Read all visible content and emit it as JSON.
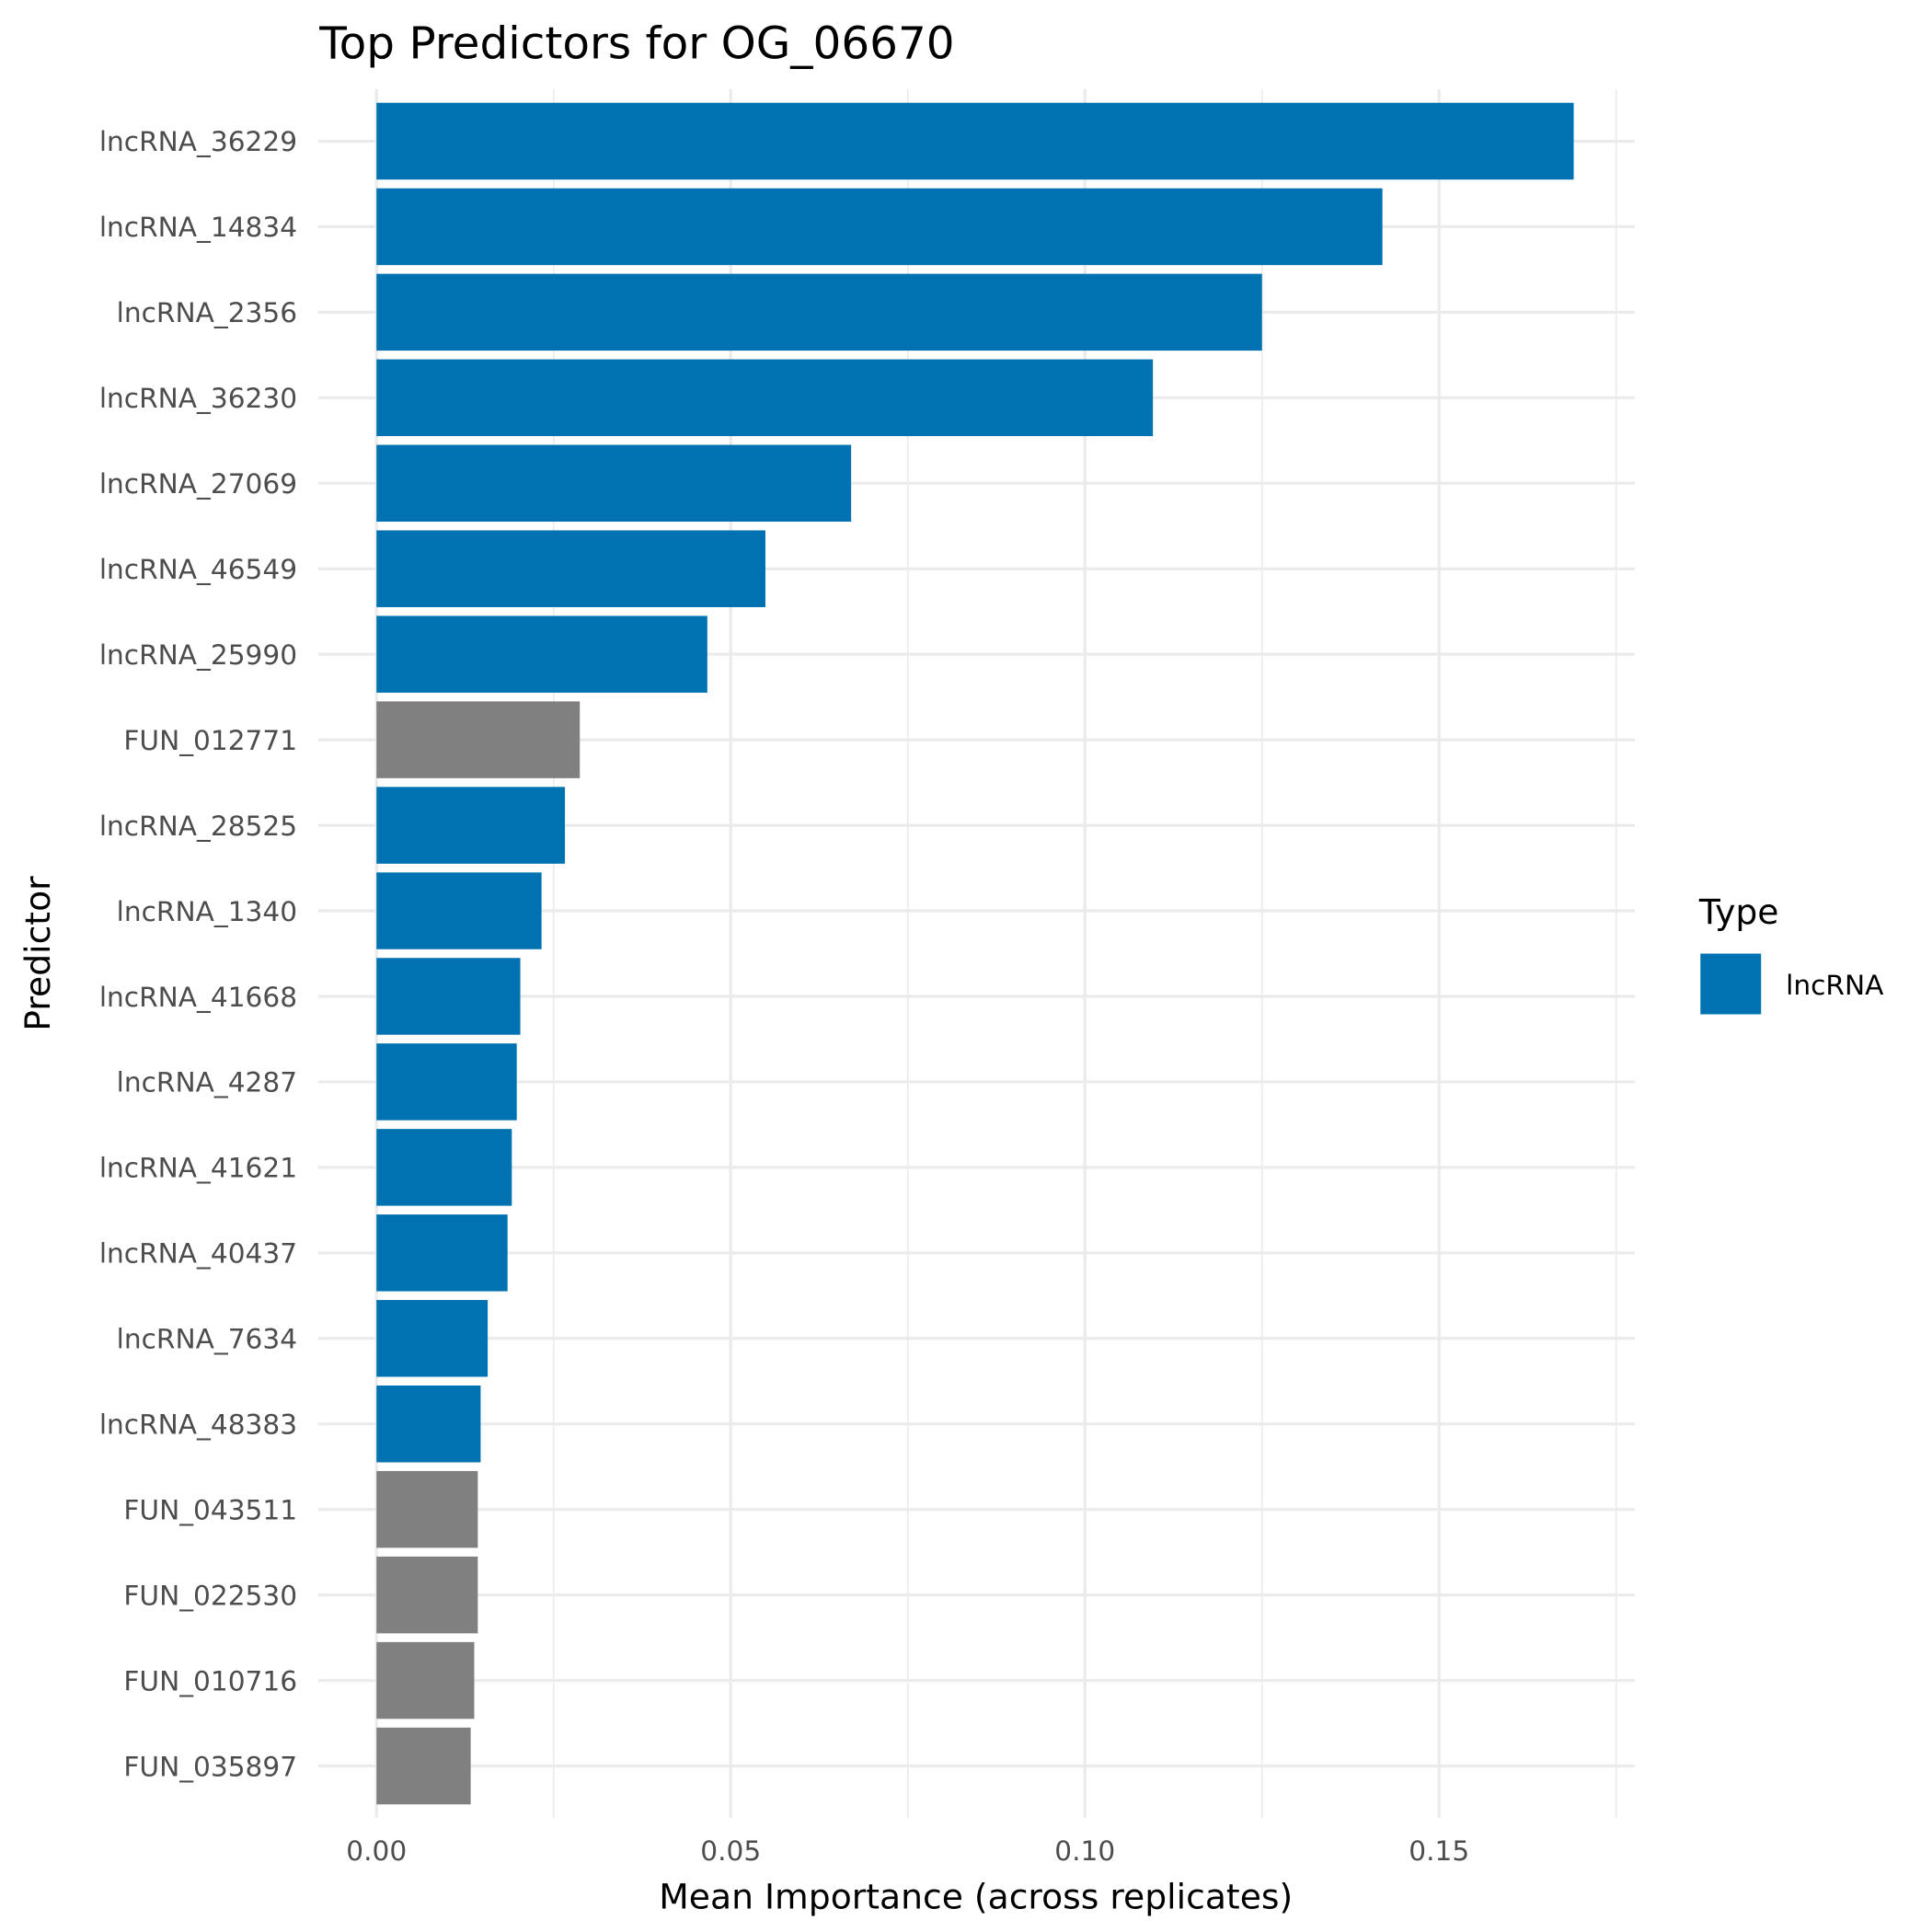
{
  "chart_data": {
    "type": "bar",
    "orientation": "horizontal",
    "title": "Top Predictors for OG_06670",
    "xlabel": "Mean Importance (across replicates)",
    "ylabel": "Predictor",
    "xlim": [
      0,
      0.178
    ],
    "xticks": [
      "0.00",
      "0.05",
      "0.10",
      "0.15"
    ],
    "xtick_values": [
      0,
      0.05,
      0.1,
      0.15
    ],
    "grid": true,
    "legend": {
      "title": "Type",
      "position": "right",
      "entries": [
        {
          "label": "lncRNA",
          "color": "#0072B2"
        }
      ]
    },
    "colors": {
      "lncRNA": "#0072B2",
      "FUN": "#808080"
    },
    "categories": [
      "lncRNA_36229",
      "lncRNA_14834",
      "lncRNA_2356",
      "lncRNA_36230",
      "lncRNA_27069",
      "lncRNA_46549",
      "lncRNA_25990",
      "FUN_012771",
      "lncRNA_28525",
      "lncRNA_1340",
      "lncRNA_41668",
      "lncRNA_4287",
      "lncRNA_41621",
      "lncRNA_40437",
      "lncRNA_7634",
      "lncRNA_48383",
      "FUN_043511",
      "FUN_022530",
      "FUN_010716",
      "FUN_035897"
    ],
    "types": [
      "lncRNA",
      "lncRNA",
      "lncRNA",
      "lncRNA",
      "lncRNA",
      "lncRNA",
      "lncRNA",
      "FUN",
      "lncRNA",
      "lncRNA",
      "lncRNA",
      "lncRNA",
      "lncRNA",
      "lncRNA",
      "lncRNA",
      "lncRNA",
      "FUN",
      "FUN",
      "FUN",
      "FUN"
    ],
    "values": [
      0.169,
      0.142,
      0.125,
      0.1096,
      0.067,
      0.0549,
      0.0467,
      0.0287,
      0.0266,
      0.0233,
      0.0203,
      0.0198,
      0.0191,
      0.0185,
      0.0157,
      0.0147,
      0.0143,
      0.0143,
      0.0138,
      0.0133
    ]
  }
}
